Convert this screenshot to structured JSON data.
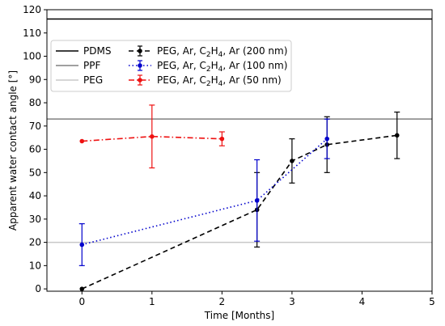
{
  "chart_data": {
    "type": "line",
    "title": "",
    "xlabel": "Time [Months]",
    "ylabel": "Apparent water contact angle [°]",
    "xlim": [
      -0.5,
      5
    ],
    "ylim": [
      -1,
      120
    ],
    "xticks": [
      0,
      1,
      2,
      3,
      4,
      5
    ],
    "yticks": [
      0,
      10,
      20,
      30,
      40,
      50,
      60,
      70,
      80,
      90,
      100,
      110,
      120
    ],
    "grid": false,
    "legend_position": "top-left",
    "reference_lines": [
      {
        "name": "PDMS",
        "y": 116,
        "color": "#000000"
      },
      {
        "name": "PPF",
        "y": 73,
        "color": "#808080"
      },
      {
        "name": "PEG",
        "y": 20,
        "color": "#c8c8c8"
      }
    ],
    "series": [
      {
        "name_parts": [
          "PEG, Ar, C",
          "2",
          "H",
          "4",
          ", Ar (200 nm)"
        ],
        "color": "#000000",
        "dash": "6,4",
        "x": [
          0,
          2.5,
          3,
          3.5,
          4.5
        ],
        "y": [
          0,
          34,
          55,
          62,
          66
        ],
        "err": [
          0,
          16,
          9.5,
          12,
          10
        ]
      },
      {
        "name_parts": [
          "PEG, Ar, C",
          "2",
          "H",
          "4",
          ", Ar (100 nm)"
        ],
        "color": "#0000cc",
        "dash": "1.5,3",
        "x": [
          0,
          2.5,
          3.5
        ],
        "y": [
          19,
          38,
          64.5
        ],
        "err": [
          9,
          17.5,
          8.5
        ]
      },
      {
        "name_parts": [
          "PEG, Ar, C",
          "2",
          "H",
          "4",
          ", Ar (50 nm)"
        ],
        "color": "#ee1111",
        "dash": "7,3,1.5,3",
        "x": [
          0,
          1,
          2
        ],
        "y": [
          63.5,
          65.5,
          64.5
        ],
        "err": [
          0,
          13.5,
          3
        ]
      }
    ]
  }
}
